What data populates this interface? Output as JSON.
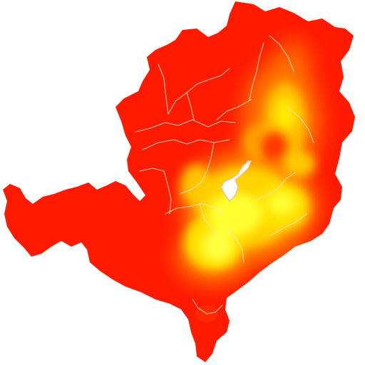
{
  "map": {
    "type": "choropleth-heatmap",
    "legend": null,
    "colors": {
      "background": "#ffffff",
      "low": "#ff1a00",
      "mid": "#ff7a00",
      "high": "#ffe000",
      "peak": "#ffff30",
      "boundary": "#f6e3c8",
      "lake": "#ffffff"
    },
    "features": [
      "land-mass",
      "heat-zone",
      "internal-boundaries",
      "lake"
    ]
  }
}
